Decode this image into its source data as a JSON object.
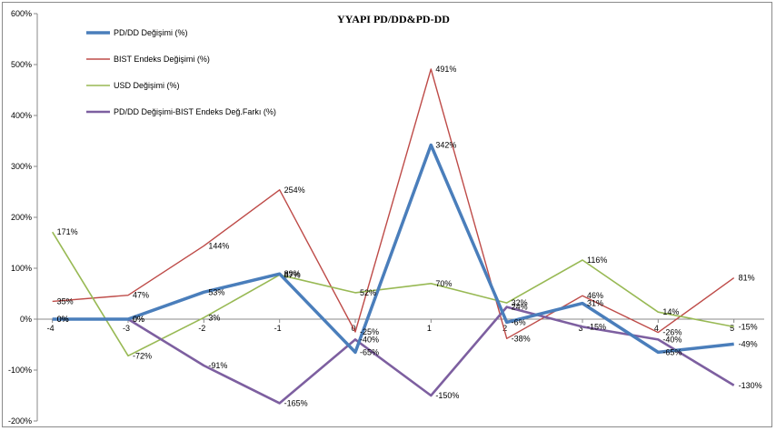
{
  "chart_data": {
    "type": "line",
    "title": "YYAPI PD/DD&PD-DD",
    "x": [
      -4,
      -3,
      -2,
      -1,
      0,
      1,
      2,
      3,
      4,
      5
    ],
    "x_tick_labels": [
      "-4",
      "-3",
      "-2",
      "-1",
      "0",
      "1",
      "2",
      "3",
      "4",
      "5"
    ],
    "ylim": [
      -200,
      600
    ],
    "y_ticks": [
      -200,
      -100,
      0,
      100,
      200,
      300,
      400,
      500,
      600
    ],
    "y_tick_labels": [
      "-200%",
      "-100%",
      "0%",
      "100%",
      "200%",
      "300%",
      "400%",
      "500%",
      "600%"
    ],
    "grid": false,
    "legend_position": "top-left",
    "series": [
      {
        "name": "PD/DD Değişimi (%)",
        "color": "#4a7ebb",
        "values": [
          0,
          0,
          53,
          89,
          -65,
          342,
          -6,
          31,
          -65,
          -49
        ],
        "labels": [
          "0%",
          "0%",
          "53%",
          "89%",
          "-65%",
          "342%",
          "-6%",
          "31%",
          "-65%",
          "-49%"
        ]
      },
      {
        "name": "BIST Endeks Değişimi (%)",
        "color": "#be4b48",
        "values": [
          35,
          47,
          144,
          254,
          -25,
          491,
          -38,
          46,
          -26,
          81
        ],
        "labels": [
          "35%",
          "47%",
          "144%",
          "254%",
          "-25%",
          "491%",
          "-38%",
          "46%",
          "-26%",
          "81%"
        ]
      },
      {
        "name": "USD Değişimi (%)",
        "color": "#98b954",
        "values": [
          171,
          -72,
          3,
          87,
          52,
          70,
          32,
          116,
          14,
          -15
        ],
        "labels": [
          "171%",
          "-72%",
          "3%",
          "87%",
          "52%",
          "70%",
          "32%",
          "116%",
          "14%",
          "-15%"
        ]
      },
      {
        "name": "PD/DD Değişimi-BIST Endeks Değ.Farkı (%)",
        "color": "#7d5fa0",
        "values": [
          0,
          0,
          -91,
          -165,
          -40,
          -150,
          24,
          -15,
          -40,
          -130
        ],
        "labels": [
          "0%",
          "0%",
          "-91%",
          "-165%",
          "-40%",
          "-150%",
          "24%",
          "-15%",
          "-40%",
          "-130%"
        ]
      }
    ]
  }
}
